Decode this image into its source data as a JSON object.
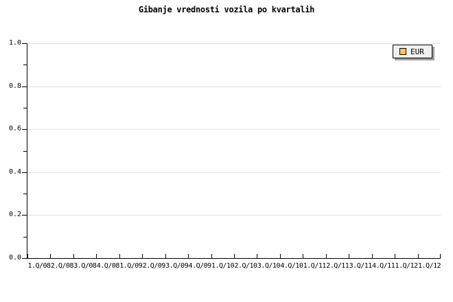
{
  "header": {
    "title": "Gibanje vrednosti vozila po kvartalih"
  },
  "legend": {
    "position": "top-right",
    "items": [
      {
        "label": "EUR",
        "swatch_color": "#fbc664"
      }
    ]
  },
  "chart_data": {
    "type": "line",
    "title": "Gibanje vrednosti vozila po kvartalih",
    "categories": [
      "1.Q/08",
      "2.Q/08",
      "3.Q/08",
      "4.Q/08",
      "1.Q/09",
      "2.Q/09",
      "3.Q/09",
      "4.Q/09",
      "1.Q/10",
      "2.Q/10",
      "3.Q/10",
      "4.Q/10",
      "1.Q/11",
      "2.Q/11",
      "3.Q/11",
      "4.Q/11",
      "1.Q/12",
      "1.Q/12"
    ],
    "series": [
      {
        "name": "EUR",
        "color": "#fbc664",
        "values": []
      }
    ],
    "xlabel": "",
    "ylabel": "",
    "ylim": [
      0.0,
      1.0
    ],
    "y_tick_labels": [
      "1.0",
      "0.8",
      "0.6",
      "0.4",
      "0.2",
      "0.0"
    ],
    "y_minor_ticks": [
      0.9,
      0.7,
      0.5,
      0.3,
      0.1
    ],
    "grid": "horizontal-major-only",
    "legend_position": "top-right",
    "colors": {
      "axis": "#000000",
      "gridline": "#e0e0e0",
      "legend_bg": "#f0f0f0",
      "legend_shadow": "#9e9e9e",
      "text": "#000000"
    }
  }
}
